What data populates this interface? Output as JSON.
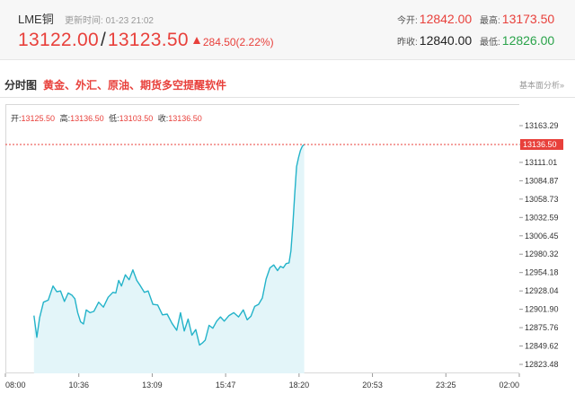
{
  "quote": {
    "name": "LME铜",
    "update_label": "更新时间:",
    "update_time": "01-23 21:02",
    "price_bid": "13122.00",
    "separator": "/",
    "price_ask": "13123.50",
    "change": "284.50(2.22%)",
    "open_label": "今开:",
    "open_value": "12842.00",
    "high_label": "最高:",
    "high_value": "13173.50",
    "prev_close_label": "昨收:",
    "prev_close_value": "12840.00",
    "low_label": "最低:",
    "low_value": "12826.00"
  },
  "tabs": {
    "timeshare": "分时图",
    "promo": "黄金、外汇、原油、期货多空提醒软件",
    "fundamental": "基本面分析»"
  },
  "ohlc_bar": {
    "open_label": "开:",
    "open_value": "13125.50",
    "high_label": "高:",
    "high_value": "13136.50",
    "low_label": "低:",
    "low_value": "13103.50",
    "close_label": "收:",
    "close_value": "13136.50"
  },
  "colors": {
    "up": "#e8403b",
    "down": "#2aa34a",
    "line": "#23b3c9",
    "area": "#e3f5f9",
    "current_price_line": "#e8403b"
  },
  "chart_data": {
    "type": "line",
    "current_price_label": "13136.50",
    "y_ticks": [
      "13163.29",
      "13136.50",
      "13111.01",
      "13084.87",
      "13058.73",
      "13032.59",
      "13006.45",
      "12980.32",
      "12954.18",
      "12928.04",
      "12901.90",
      "12875.76",
      "12849.62",
      "12823.48"
    ],
    "x_ticks": [
      "08:00",
      "10:36",
      "13:09",
      "15:47",
      "18:20",
      "20:53",
      "23:25",
      "02:00"
    ],
    "ylim": [
      12816.0,
      13175.0
    ],
    "xlim": [
      0,
      1080
    ],
    "series": [
      {
        "values": [
          [
            60,
            12893
          ],
          [
            66,
            12862
          ],
          [
            72,
            12890
          ],
          [
            80,
            12912
          ],
          [
            90,
            12915
          ],
          [
            100,
            12935
          ],
          [
            108,
            12927
          ],
          [
            116,
            12928
          ],
          [
            124,
            12913
          ],
          [
            132,
            12925
          ],
          [
            140,
            12922
          ],
          [
            146,
            12917
          ],
          [
            152,
            12897
          ],
          [
            158,
            12884
          ],
          [
            164,
            12881
          ],
          [
            170,
            12901
          ],
          [
            178,
            12897
          ],
          [
            186,
            12899
          ],
          [
            196,
            12912
          ],
          [
            206,
            12905
          ],
          [
            216,
            12919
          ],
          [
            226,
            12926
          ],
          [
            232,
            12925
          ],
          [
            238,
            12943
          ],
          [
            244,
            12935
          ],
          [
            252,
            12951
          ],
          [
            260,
            12944
          ],
          [
            268,
            12958
          ],
          [
            276,
            12943
          ],
          [
            284,
            12935
          ],
          [
            292,
            12926
          ],
          [
            300,
            12928
          ],
          [
            310,
            12909
          ],
          [
            320,
            12908
          ],
          [
            330,
            12894
          ],
          [
            340,
            12895
          ],
          [
            350,
            12882
          ],
          [
            360,
            12872
          ],
          [
            368,
            12897
          ],
          [
            376,
            12871
          ],
          [
            384,
            12888
          ],
          [
            392,
            12865
          ],
          [
            400,
            12873
          ],
          [
            408,
            12851
          ],
          [
            414,
            12854
          ],
          [
            420,
            12858
          ],
          [
            428,
            12879
          ],
          [
            436,
            12875
          ],
          [
            444,
            12885
          ],
          [
            452,
            12891
          ],
          [
            460,
            12885
          ],
          [
            470,
            12893
          ],
          [
            480,
            12897
          ],
          [
            490,
            12891
          ],
          [
            500,
            12901
          ],
          [
            508,
            12887
          ],
          [
            516,
            12892
          ],
          [
            524,
            12906
          ],
          [
            532,
            12909
          ],
          [
            540,
            12918
          ],
          [
            548,
            12945
          ],
          [
            556,
            12961
          ],
          [
            564,
            12965
          ],
          [
            572,
            12957
          ],
          [
            578,
            12963
          ],
          [
            584,
            12961
          ],
          [
            590,
            12967
          ],
          [
            596,
            12968
          ],
          [
            600,
            12985
          ],
          [
            604,
            13021
          ],
          [
            608,
            13065
          ],
          [
            612,
            13105
          ],
          [
            616,
            13118
          ],
          [
            620,
            13128
          ],
          [
            624,
            13134
          ],
          [
            628,
            13136.5
          ]
        ]
      }
    ],
    "grid": false
  }
}
